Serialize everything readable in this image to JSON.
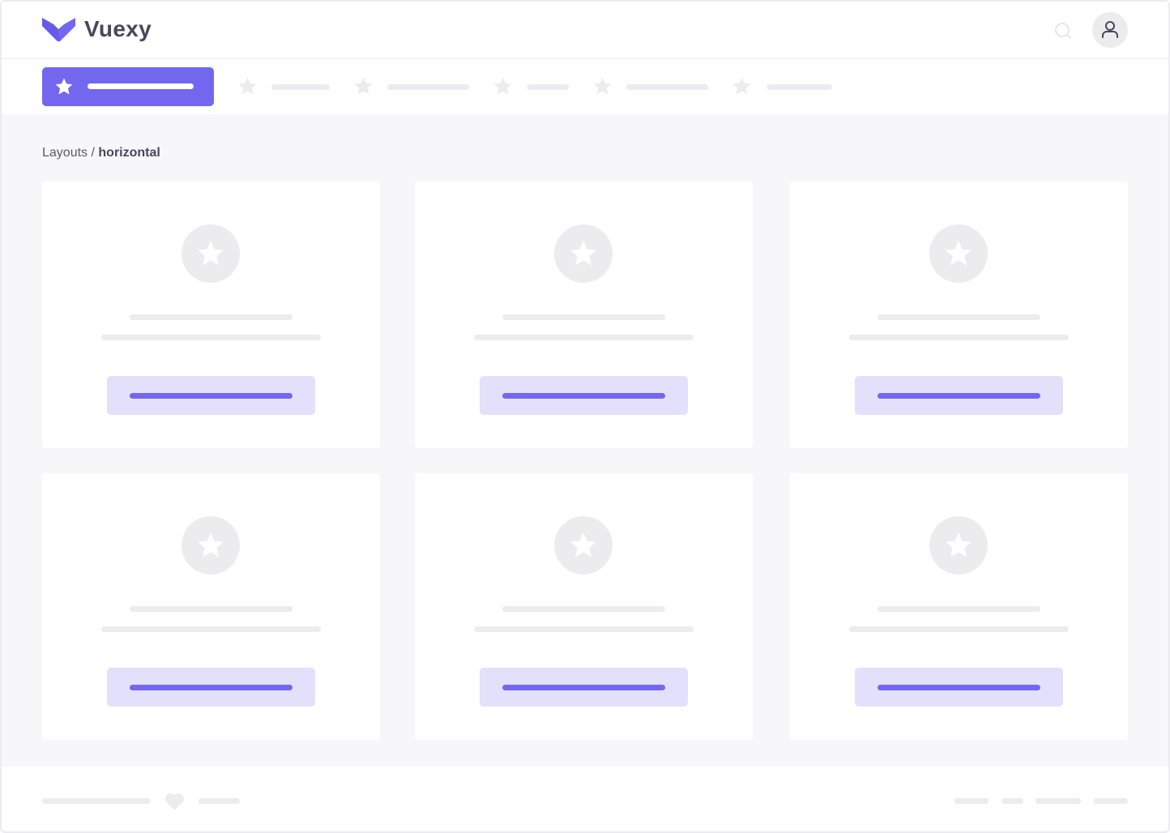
{
  "header": {
    "brand": "Vuexy",
    "search_icon": "search-icon",
    "user_icon": "user-icon"
  },
  "nav": {
    "active_icon": "star-icon",
    "item_icon": "star-icon",
    "item_count": 5
  },
  "breadcrumb": {
    "parent": "Layouts",
    "separator": " / ",
    "current": "horizontal"
  },
  "cards": [
    {
      "icon": "star-icon"
    },
    {
      "icon": "star-icon"
    },
    {
      "icon": "star-icon"
    },
    {
      "icon": "star-icon"
    },
    {
      "icon": "star-icon"
    },
    {
      "icon": "star-icon"
    }
  ],
  "footer": {
    "icon": "heart-icon"
  },
  "colors": {
    "primary": "#7367f0",
    "primary_light": "#e3e0fb",
    "placeholder": "#ececef",
    "background": "#f7f7f9",
    "text": "#4b465c"
  }
}
